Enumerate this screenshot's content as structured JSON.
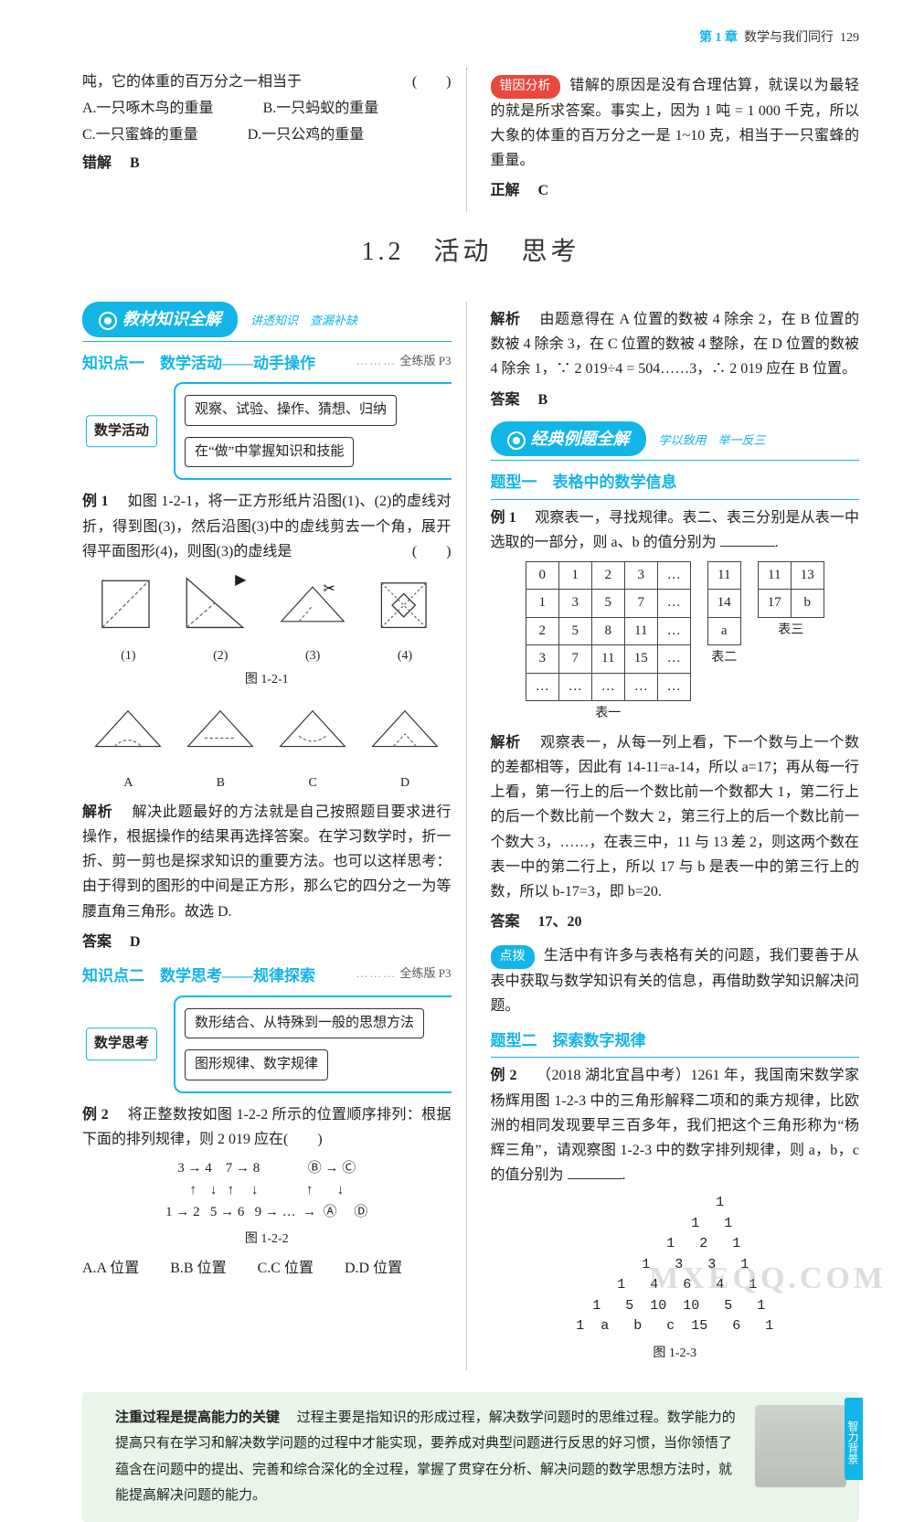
{
  "header": {
    "chapter": "第 1 章",
    "title": "数学与我们同行",
    "page": "129"
  },
  "top": {
    "left": {
      "q_line1": "吨，它的体重的百万分之一相当于",
      "optA": "A.一只啄木鸟的重量",
      "optB": "B.一只蚂蚁的重量",
      "optC": "C.一只蜜蜂的重量",
      "optD": "D.一只公鸡的重量",
      "wrong_label": "错解",
      "wrong": "B"
    },
    "right": {
      "badge": "错因分析",
      "text": "错解的原因是没有合理估算，就误以为最轻的就是所求答案。事实上，因为 1 吨 = 1 000 千克，所以大象的体重的百万分之一是 1~10 克，相当于一只蜜蜂的重量。",
      "correct_label": "正解",
      "correct": "C"
    }
  },
  "section_title": "1.2　活动　思考",
  "pill1": {
    "main": "教材知识全解",
    "sub": "讲透知识　查漏补缺"
  },
  "kn1": {
    "title": "知识点一　数学活动——动手操作",
    "ref": "全练版 P3",
    "box_label": "数学活动",
    "row1": "观察、试验、操作、猜想、归纳",
    "row2": "在“做”中掌握知识和技能"
  },
  "ex1": {
    "label": "例 1",
    "text": "如图 1-2-1，将一正方形纸片沿图(1)、(2)的虚线对折，得到图(3)，然后沿图(3)中的虚线剪去一个角，展开得平面图形(4)，则图(3)的虚线是",
    "fig_labels": [
      "(1)",
      "(2)",
      "(3)",
      "(4)"
    ],
    "fig_caption": "图 1-2-1",
    "opt_labels": [
      "A",
      "B",
      "C",
      "D"
    ],
    "ana_label": "解析",
    "ana": "解决此题最好的方法就是自己按照题目要求进行操作，根据操作的结果再选择答案。在学习数学时，折一折、剪一剪也是探求知识的重要方法。也可以这样思考：由于得到的图形的中间是正方形，那么它的四分之一为等腰直角三角形。故选 D.",
    "ans_label": "答案",
    "ans": "D"
  },
  "kn2": {
    "title": "知识点二　数学思考——规律探索",
    "ref": "全练版 P3",
    "box_label": "数学思考",
    "row1": "数形结合、从特殊到一般的思想方法",
    "row2": "图形规律、数字规律"
  },
  "ex2": {
    "label": "例 2",
    "text": "将正整数按如图 1-2-2 所示的位置顺序排列：根据下面的排列规律，则 2 019 应在",
    "seq": "3 → 4    7 → 8              Ⓑ → Ⓒ\n↑    ↓   ↑     ↓              ↑       ↓\n1 → 2   5 → 6   9 → …  →  Ⓐ     Ⓓ",
    "fig_caption": "图 1-2-2",
    "optA": "A.A 位置",
    "optB": "B.B 位置",
    "optC": "C.C 位置",
    "optD": "D.D 位置"
  },
  "right_top": {
    "ana_label": "解析",
    "ana": "由题意得在 A 位置的数被 4 除余 2，在 B 位置的数被 4 除余 3，在 C 位置的数被 4 整除，在 D 位置的数被 4 除余 1，∵ 2 019÷4 = 504……3，∴ 2 019 应在 B 位置。",
    "ans_label": "答案",
    "ans": "B"
  },
  "pill2": {
    "main": "经典例题全解",
    "sub": "学以致用　举一反三"
  },
  "topic1": {
    "title": "题型一　表格中的数学信息",
    "label": "例 1",
    "text": "观察表一，寻找规律。表二、表三分别是从表一中选取的一部分，则 a、b 的值分别为",
    "t1": {
      "rows": [
        [
          "0",
          "1",
          "2",
          "3",
          "…"
        ],
        [
          "1",
          "3",
          "5",
          "7",
          "…"
        ],
        [
          "2",
          "5",
          "8",
          "11",
          "…"
        ],
        [
          "3",
          "7",
          "11",
          "15",
          "…"
        ],
        [
          "…",
          "…",
          "…",
          "…",
          "…"
        ]
      ],
      "cap": "表一"
    },
    "t2": {
      "rows": [
        [
          "11"
        ],
        [
          "14"
        ],
        [
          "a"
        ]
      ],
      "cap": "表二"
    },
    "t3": {
      "rows": [
        [
          "11",
          "13"
        ],
        [
          "17",
          "b"
        ]
      ],
      "cap": "表三"
    },
    "ana_label": "解析",
    "ana": "观察表一，从每一列上看，下一个数与上一个数的差都相等，因此有 14-11=a-14，所以 a=17；再从每一行上看，第一行上的后一个数比前一个数都大 1，第二行上的后一个数比前一个数大 2，第三行上的后一个数比前一个数大 3，……，在表三中，11 与 13 差 2，则这两个数在表一中的第二行上，所以 17 与 b 是表一中的第三行上的数，所以 b-17=3，即 b=20.",
    "ans_label": "答案",
    "ans": "17、20",
    "tip_badge": "点拨",
    "tip": "生活中有许多与表格有关的问题，我们要善于从表中获取与数学知识有关的信息，再借助数学知识解决问题。"
  },
  "topic2": {
    "title": "题型二　探索数字规律",
    "label": "例 2",
    "text": "（2018 湖北宜昌中考）1261 年，我国南宋数学家杨辉用图 1-2-3 中的三角形解释二项和的乘方规律，比欧洲的相同发现要早三百多年，我们把这个三角形称为“杨辉三角”，请观察图 1-2-3 中的数字排列规律，则 a，b，c 的值分别为",
    "triangle": "           1\n         1   1\n       1   2   1\n     1   3   3   1\n   1   4   6   4   1\n 1   5  10  10   5   1\n1  a   b   c  15   6   1",
    "fig_caption": "图 1-2-3"
  },
  "footer": {
    "title": "注重过程是提高能力的关键",
    "body": "过程主要是指知识的形成过程，解决数学问题时的思维过程。数学能力的提高只有在学习和解决数学问题的过程中才能实现，要养成对典型问题进行反思的好习惯，当你领悟了蕴含在问题中的提出、完善和综合深化的全过程，掌握了贯穿在分析、解决问题的数学思想方法时，就能提高解决问题的能力。",
    "tab": "智力背景"
  },
  "watermark": "MXEQQ.COM",
  "svg_colors": {
    "stroke": "#333",
    "dash": "#666"
  }
}
